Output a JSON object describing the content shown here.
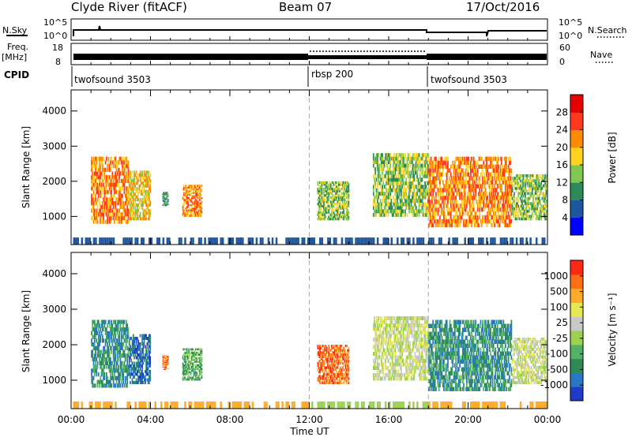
{
  "header": {
    "station": "Clyde River (fitACF)",
    "beam": "Beam 07",
    "date": "17/Oct/2016"
  },
  "top_panels": {
    "nsky_label": "N.Sky",
    "nsearch_label": "N.Search",
    "nsky_ticks": [
      "10^5",
      "10^0"
    ],
    "nsearch_ticks": [
      "10^5",
      "10^0"
    ],
    "freq_label_line1": "Freq.",
    "freq_label_line2": "[MHz]",
    "freq_ticks": [
      "18",
      "8"
    ],
    "nave_label": "Nave",
    "nave_ticks": [
      "60",
      "0"
    ],
    "cpid_label": "CPID",
    "cpid_segments": [
      {
        "name": "twofsound 3503",
        "start": 0,
        "end": 12
      },
      {
        "name": "rbsp 200",
        "start": 12,
        "end": 18
      },
      {
        "name": "twofsound 3503",
        "start": 18,
        "end": 24
      }
    ]
  },
  "colorbars": {
    "power": {
      "label": "Power [dB]",
      "ticks": [
        "28",
        "24",
        "20",
        "16",
        "12",
        "8",
        "4"
      ],
      "colors": [
        "#0000ff",
        "#1e56a0",
        "#2e8b57",
        "#7ec850",
        "#ffd21e",
        "#ff8c00",
        "#ff3a1e",
        "#e60000"
      ]
    },
    "velocity": {
      "label": "Velocity [m s⁻¹]",
      "ticks": [
        "1000",
        "500",
        "100",
        "25",
        "-25",
        "-100",
        "-500",
        "-1000"
      ],
      "colors": [
        "#1e3cc8",
        "#2878c8",
        "#2e8b57",
        "#50b464",
        "#9bd250",
        "#c8c8c8",
        "#e6e650",
        "#ffaa28",
        "#ff6e14",
        "#ff2814"
      ]
    }
  },
  "chart_data": [
    {
      "type": "heatmap",
      "name": "power",
      "ylabel": "Slant Range [km]",
      "yticks": [
        "1000",
        "2000",
        "3000",
        "4000"
      ],
      "ylim": [
        200,
        4600
      ],
      "xlim": [
        0,
        24
      ],
      "xticks": [
        "00:00",
        "04:00",
        "08:00",
        "12:00",
        "16:00",
        "20:00",
        "00:00"
      ],
      "blobs": [
        {
          "t0": 1.0,
          "t1": 2.9,
          "r0": 800,
          "r1": 2700,
          "level": 5
        },
        {
          "t0": 2.9,
          "t1": 4.0,
          "r0": 900,
          "r1": 2300,
          "level": 4
        },
        {
          "t0": 4.6,
          "t1": 4.9,
          "r0": 1300,
          "r1": 1700,
          "level": 2
        },
        {
          "t0": 5.6,
          "t1": 6.6,
          "r0": 1000,
          "r1": 1900,
          "level": 5
        },
        {
          "t0": 12.4,
          "t1": 14.0,
          "r0": 900,
          "r1": 2000,
          "level": 3
        },
        {
          "t0": 15.2,
          "t1": 18.0,
          "r0": 1000,
          "r1": 2800,
          "level": 3
        },
        {
          "t0": 18.0,
          "t1": 22.2,
          "r0": 700,
          "r1": 2700,
          "level": 5
        },
        {
          "t0": 22.2,
          "t1": 24.0,
          "r0": 900,
          "r1": 2200,
          "level": 3
        }
      ]
    },
    {
      "type": "heatmap",
      "name": "velocity",
      "ylabel": "Slant Range [km]",
      "yticks": [
        "1000",
        "2000",
        "3000",
        "4000"
      ],
      "ylim": [
        200,
        4600
      ],
      "xlim": [
        0,
        24
      ],
      "xticks": [
        "00:00",
        "04:00",
        "08:00",
        "12:00",
        "16:00",
        "20:00",
        "00:00"
      ],
      "xlabel": "Time UT",
      "blobs": [
        {
          "t0": 1.0,
          "t1": 2.9,
          "r0": 800,
          "r1": 2700,
          "level": 2
        },
        {
          "t0": 2.9,
          "t1": 4.0,
          "r0": 900,
          "r1": 2300,
          "level": 1
        },
        {
          "t0": 4.6,
          "t1": 4.9,
          "r0": 1300,
          "r1": 1700,
          "level": 8
        },
        {
          "t0": 5.6,
          "t1": 6.6,
          "r0": 1000,
          "r1": 1900,
          "level": 3
        },
        {
          "t0": 12.4,
          "t1": 14.0,
          "r0": 900,
          "r1": 2000,
          "level": 8
        },
        {
          "t0": 15.2,
          "t1": 18.0,
          "r0": 1000,
          "r1": 2800,
          "level": 5
        },
        {
          "t0": 18.0,
          "t1": 22.2,
          "r0": 700,
          "r1": 2700,
          "level": 2
        },
        {
          "t0": 22.2,
          "t1": 24.0,
          "r0": 900,
          "r1": 2200,
          "level": 5
        }
      ]
    }
  ]
}
